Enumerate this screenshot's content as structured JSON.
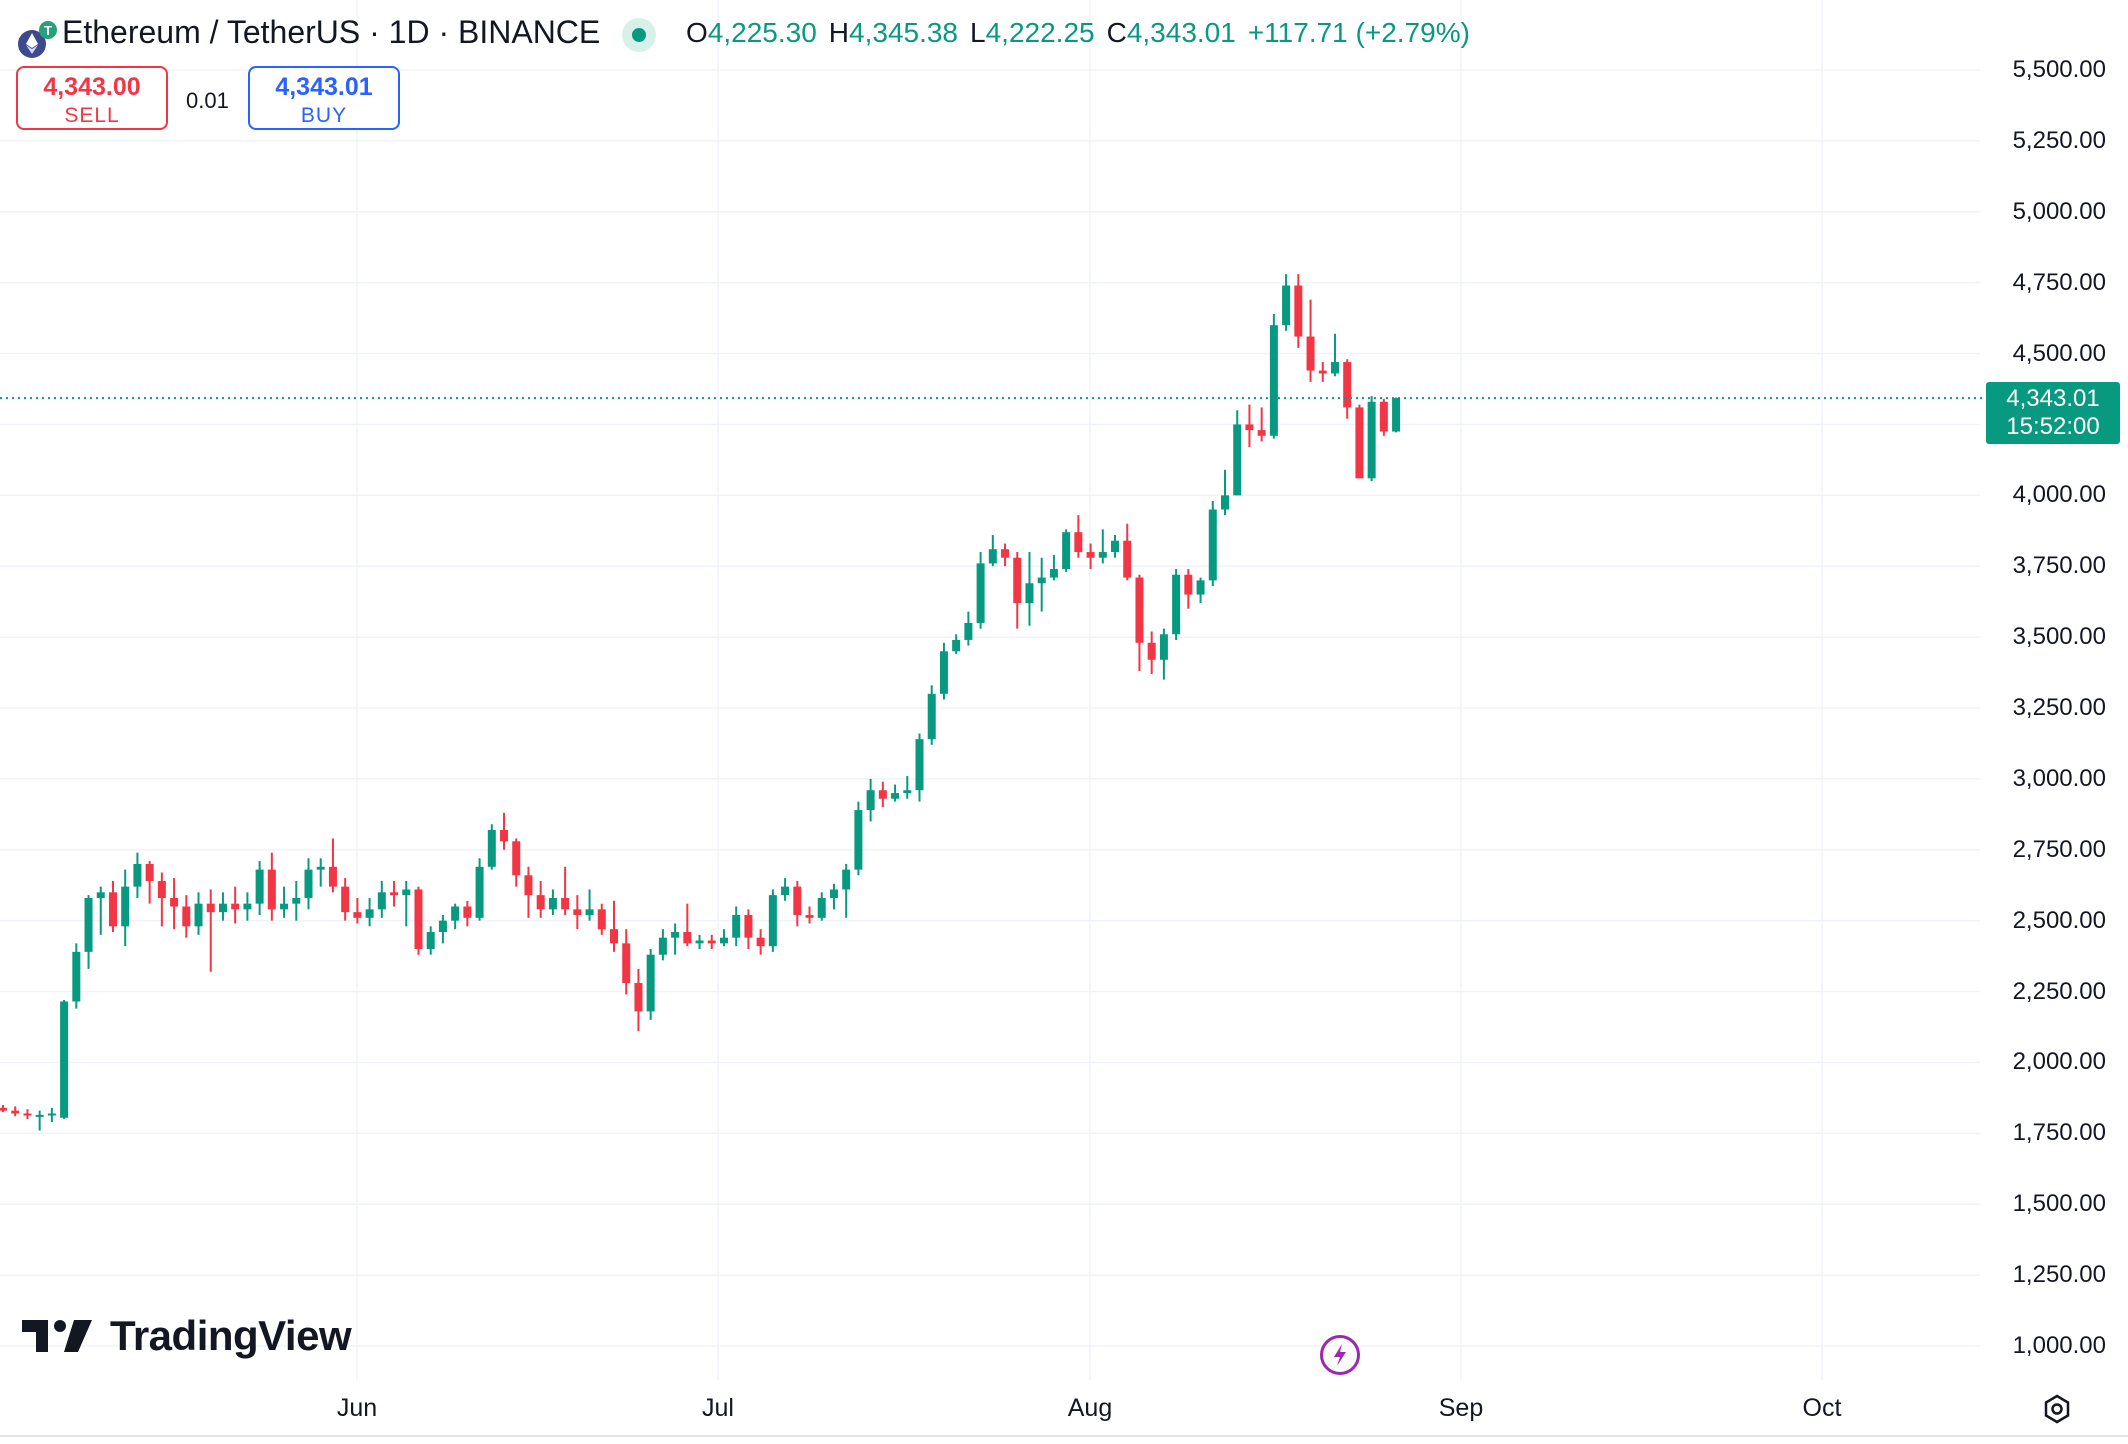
{
  "header": {
    "symbol_title": "Ethereum / TetherUS · 1D · BINANCE",
    "ohlc": {
      "o_key": "O",
      "o_val": "4,225.30",
      "h_key": "H",
      "h_val": "4,345.38",
      "l_key": "L",
      "l_val": "4,222.25",
      "c_key": "C",
      "c_val": "4,343.01",
      "change": "+117.71 (+2.79%)"
    }
  },
  "trade": {
    "sell_price": "4,343.00",
    "sell_label": "SELL",
    "spread": "0.01",
    "buy_price": "4,343.01",
    "buy_label": "BUY"
  },
  "price_tag": {
    "price": "4,343.01",
    "countdown": "15:52:00"
  },
  "branding": {
    "logo_text": "TradingView"
  },
  "icons": {
    "symbol": "ethereum-icon",
    "status": "market-open-dot-icon",
    "lightning": "lightning-icon",
    "settings": "settings-gear-icon",
    "logo": "tradingview-logo-icon"
  },
  "colors": {
    "up": "#089981",
    "down": "#f23645",
    "buy": "#2962ff",
    "grid": "#f0f3fa"
  },
  "chart_data": {
    "type": "candlestick",
    "x_labels": [
      "Jun",
      "Jul",
      "Aug",
      "Sep",
      "Oct"
    ],
    "y_labels": [
      "5,500.00",
      "5,250.00",
      "5,000.00",
      "4,750.00",
      "4,500.00",
      "4,000.00",
      "3,750.00",
      "3,500.00",
      "3,250.00",
      "3,000.00",
      "2,750.00",
      "2,500.00",
      "2,250.00",
      "2,000.00",
      "1,750.00",
      "1,500.00",
      "1,250.00",
      "1,000.00"
    ],
    "y_values": [
      5500,
      5250,
      5000,
      4750,
      4500,
      4000,
      3750,
      3500,
      3250,
      3000,
      2750,
      2500,
      2250,
      2000,
      1750,
      1500,
      1250,
      1000
    ],
    "ylim": [
      900,
      5600
    ],
    "last_price": 4343.01,
    "candles": [
      [
        1840,
        1830,
        1850,
        1825
      ],
      [
        1830,
        1820,
        1845,
        1810
      ],
      [
        1820,
        1815,
        1835,
        1800
      ],
      [
        1810,
        1815,
        1830,
        1760
      ],
      [
        1815,
        1820,
        1840,
        1790
      ],
      [
        1805,
        2215,
        2220,
        1800
      ],
      [
        2215,
        2390,
        2420,
        2190
      ],
      [
        2390,
        2580,
        2590,
        2330
      ],
      [
        2580,
        2600,
        2620,
        2450
      ],
      [
        2600,
        2480,
        2640,
        2460
      ],
      [
        2480,
        2620,
        2680,
        2410
      ],
      [
        2620,
        2700,
        2740,
        2580
      ],
      [
        2700,
        2640,
        2710,
        2560
      ],
      [
        2640,
        2580,
        2670,
        2480
      ],
      [
        2580,
        2550,
        2650,
        2470
      ],
      [
        2550,
        2480,
        2590,
        2440
      ],
      [
        2480,
        2560,
        2600,
        2450
      ],
      [
        2560,
        2530,
        2610,
        2320
      ],
      [
        2530,
        2560,
        2600,
        2500
      ],
      [
        2560,
        2540,
        2620,
        2490
      ],
      [
        2540,
        2560,
        2600,
        2500
      ],
      [
        2560,
        2680,
        2710,
        2520
      ],
      [
        2680,
        2540,
        2740,
        2500
      ],
      [
        2540,
        2560,
        2620,
        2510
      ],
      [
        2560,
        2580,
        2640,
        2500
      ],
      [
        2580,
        2680,
        2720,
        2540
      ],
      [
        2680,
        2690,
        2720,
        2620
      ],
      [
        2690,
        2620,
        2790,
        2600
      ],
      [
        2620,
        2530,
        2650,
        2500
      ],
      [
        2530,
        2510,
        2580,
        2490
      ],
      [
        2510,
        2540,
        2580,
        2480
      ],
      [
        2540,
        2600,
        2640,
        2510
      ],
      [
        2600,
        2590,
        2640,
        2550
      ],
      [
        2590,
        2610,
        2640,
        2480
      ],
      [
        2610,
        2400,
        2620,
        2380
      ],
      [
        2400,
        2460,
        2480,
        2380
      ],
      [
        2460,
        2500,
        2520,
        2420
      ],
      [
        2500,
        2550,
        2560,
        2470
      ],
      [
        2550,
        2510,
        2570,
        2480
      ],
      [
        2510,
        2690,
        2720,
        2500
      ],
      [
        2690,
        2820,
        2840,
        2680
      ],
      [
        2820,
        2780,
        2880,
        2750
      ],
      [
        2780,
        2660,
        2790,
        2620
      ],
      [
        2660,
        2590,
        2690,
        2510
      ],
      [
        2590,
        2540,
        2640,
        2510
      ],
      [
        2540,
        2580,
        2610,
        2520
      ],
      [
        2580,
        2540,
        2690,
        2520
      ],
      [
        2540,
        2520,
        2590,
        2470
      ],
      [
        2520,
        2540,
        2610,
        2500
      ],
      [
        2540,
        2470,
        2560,
        2450
      ],
      [
        2470,
        2420,
        2570,
        2390
      ],
      [
        2420,
        2280,
        2470,
        2240
      ],
      [
        2280,
        2180,
        2330,
        2110
      ],
      [
        2180,
        2380,
        2400,
        2150
      ],
      [
        2380,
        2440,
        2470,
        2360
      ],
      [
        2440,
        2460,
        2490,
        2380
      ],
      [
        2460,
        2420,
        2560,
        2410
      ],
      [
        2420,
        2430,
        2450,
        2400
      ],
      [
        2430,
        2420,
        2450,
        2400
      ],
      [
        2420,
        2440,
        2470,
        2410
      ],
      [
        2440,
        2520,
        2550,
        2410
      ],
      [
        2520,
        2440,
        2540,
        2400
      ],
      [
        2440,
        2410,
        2470,
        2380
      ],
      [
        2410,
        2590,
        2610,
        2390
      ],
      [
        2590,
        2620,
        2650,
        2570
      ],
      [
        2620,
        2520,
        2640,
        2480
      ],
      [
        2520,
        2510,
        2550,
        2490
      ],
      [
        2510,
        2580,
        2600,
        2500
      ],
      [
        2580,
        2610,
        2630,
        2540
      ],
      [
        2610,
        2680,
        2700,
        2510
      ],
      [
        2680,
        2890,
        2920,
        2660
      ],
      [
        2890,
        2960,
        3000,
        2850
      ],
      [
        2960,
        2930,
        2990,
        2900
      ],
      [
        2930,
        2950,
        2980,
        2920
      ],
      [
        2950,
        2960,
        3010,
        2930
      ],
      [
        2960,
        3140,
        3160,
        2920
      ],
      [
        3140,
        3300,
        3330,
        3120
      ],
      [
        3300,
        3450,
        3480,
        3280
      ],
      [
        3450,
        3490,
        3510,
        3440
      ],
      [
        3490,
        3550,
        3590,
        3470
      ],
      [
        3550,
        3760,
        3800,
        3530
      ],
      [
        3760,
        3810,
        3860,
        3750
      ],
      [
        3810,
        3780,
        3830,
        3750
      ],
      [
        3780,
        3620,
        3800,
        3530
      ],
      [
        3620,
        3690,
        3800,
        3540
      ],
      [
        3690,
        3710,
        3780,
        3590
      ],
      [
        3710,
        3740,
        3790,
        3700
      ],
      [
        3740,
        3870,
        3880,
        3730
      ],
      [
        3870,
        3800,
        3930,
        3780
      ],
      [
        3800,
        3780,
        3830,
        3740
      ],
      [
        3780,
        3800,
        3880,
        3760
      ],
      [
        3800,
        3840,
        3860,
        3780
      ],
      [
        3840,
        3710,
        3900,
        3700
      ],
      [
        3710,
        3480,
        3720,
        3380
      ],
      [
        3480,
        3420,
        3520,
        3370
      ],
      [
        3420,
        3510,
        3530,
        3350
      ],
      [
        3510,
        3720,
        3740,
        3490
      ],
      [
        3720,
        3650,
        3740,
        3600
      ],
      [
        3650,
        3700,
        3710,
        3620
      ],
      [
        3700,
        3950,
        3980,
        3680
      ],
      [
        3950,
        4000,
        4090,
        3930
      ],
      [
        4000,
        4250,
        4300,
        4000
      ],
      [
        4250,
        4230,
        4320,
        4170
      ],
      [
        4230,
        4210,
        4310,
        4190
      ],
      [
        4210,
        4600,
        4640,
        4200
      ],
      [
        4600,
        4740,
        4780,
        4580
      ],
      [
        4740,
        4560,
        4780,
        4520
      ],
      [
        4560,
        4440,
        4690,
        4400
      ],
      [
        4440,
        4430,
        4470,
        4400
      ],
      [
        4430,
        4470,
        4570,
        4420
      ],
      [
        4470,
        4310,
        4480,
        4270
      ],
      [
        4310,
        4060,
        4320,
        4060
      ],
      [
        4060,
        4330,
        4350,
        4050
      ],
      [
        4330,
        4225,
        4340,
        4210
      ],
      [
        4225,
        4343,
        4345,
        4222
      ]
    ]
  }
}
